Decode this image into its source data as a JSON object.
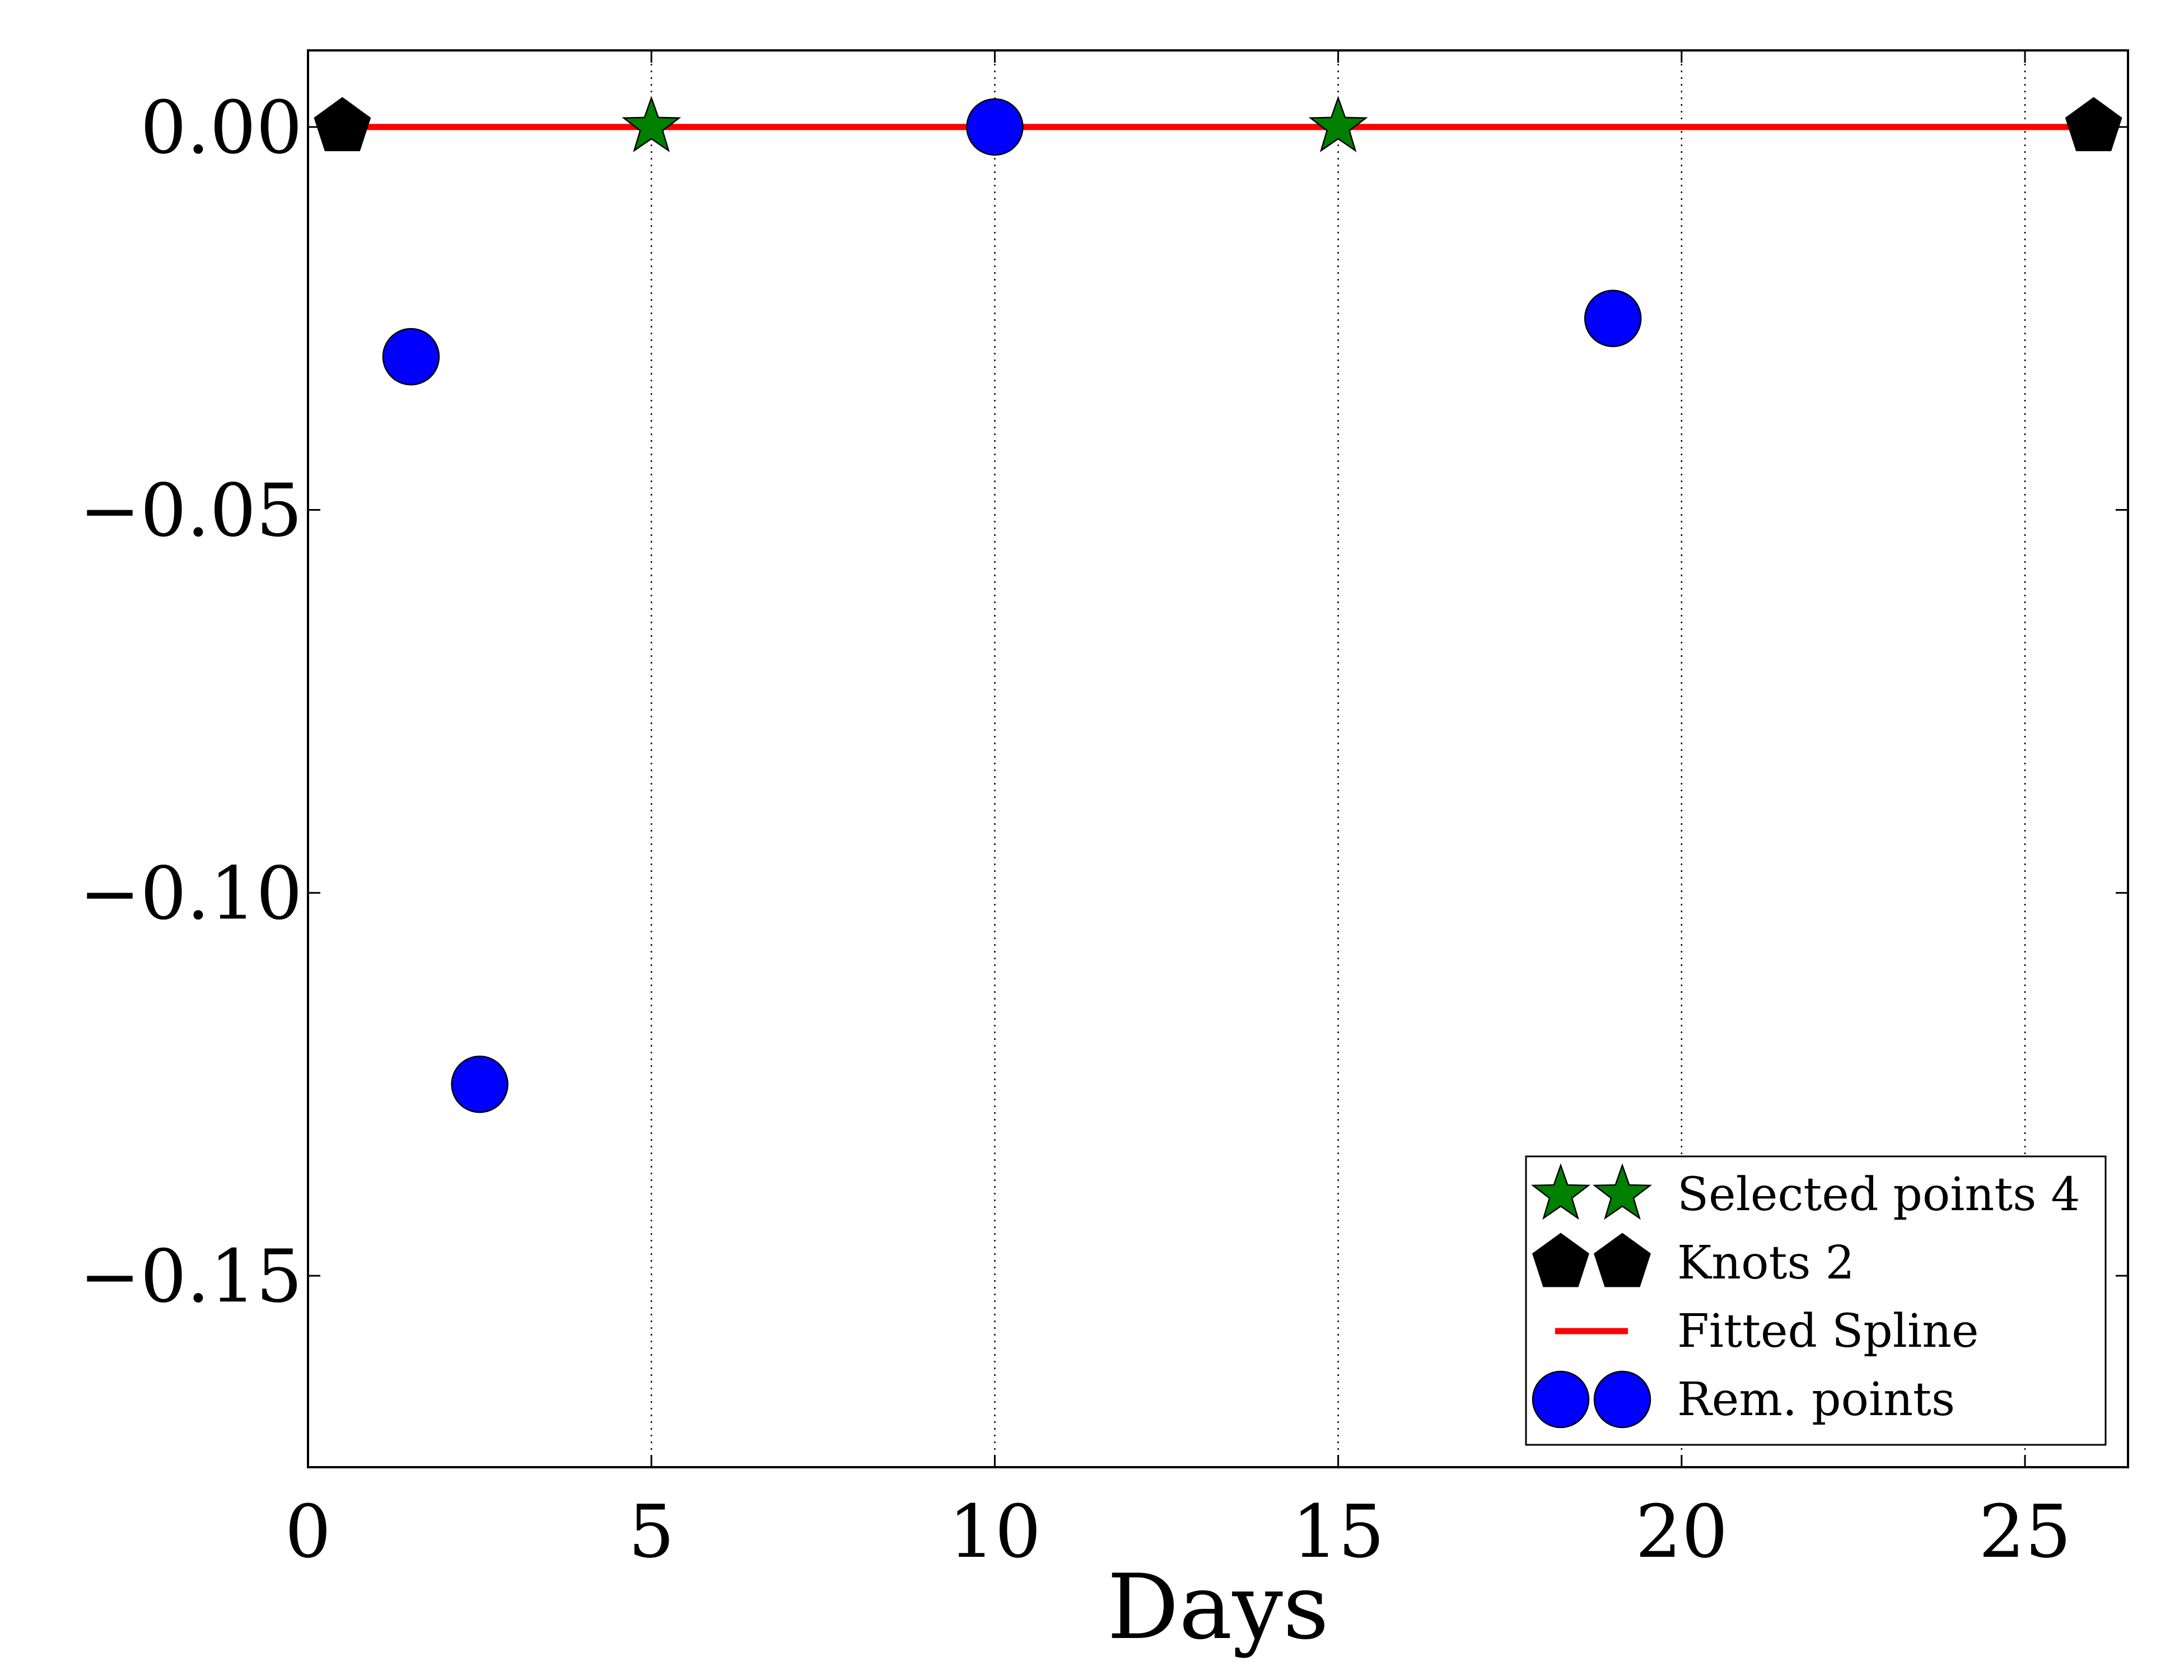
{
  "chart_data": {
    "type": "scatter",
    "title": "",
    "xlabel": "Days",
    "ylabel": "",
    "xlim": [
      0,
      26.5
    ],
    "ylim": [
      -0.175,
      0.01
    ],
    "xticks": [
      0,
      5,
      10,
      15,
      20,
      25
    ],
    "xtick_labels": [
      "0",
      "5",
      "10",
      "15",
      "20",
      "25"
    ],
    "yticks": [
      0.0,
      -0.05,
      -0.1,
      -0.15
    ],
    "ytick_labels": [
      "0.00",
      "−0.05",
      "−0.10",
      "−0.15"
    ],
    "grid": "vertical dotted at x ticks",
    "legend_position": "lower-right",
    "series": [
      {
        "name": "Selected points 4",
        "marker": "star",
        "color": "#008000",
        "x": [
          5,
          15
        ],
        "y": [
          0.0,
          0.0
        ]
      },
      {
        "name": "Knots 2",
        "marker": "pentagon",
        "color": "#000000",
        "x": [
          0.5,
          26
        ],
        "y": [
          0.0,
          0.0
        ]
      },
      {
        "name": "Fitted Spline",
        "marker": "line",
        "color": "#ff0000",
        "x": [
          0.5,
          26
        ],
        "y": [
          0.0,
          0.0
        ]
      },
      {
        "name": "Rem. points",
        "marker": "circle",
        "color": "#0000ff",
        "x": [
          1.5,
          2.5,
          10,
          19
        ],
        "y": [
          -0.03,
          -0.125,
          0.0,
          -0.025
        ]
      }
    ]
  }
}
